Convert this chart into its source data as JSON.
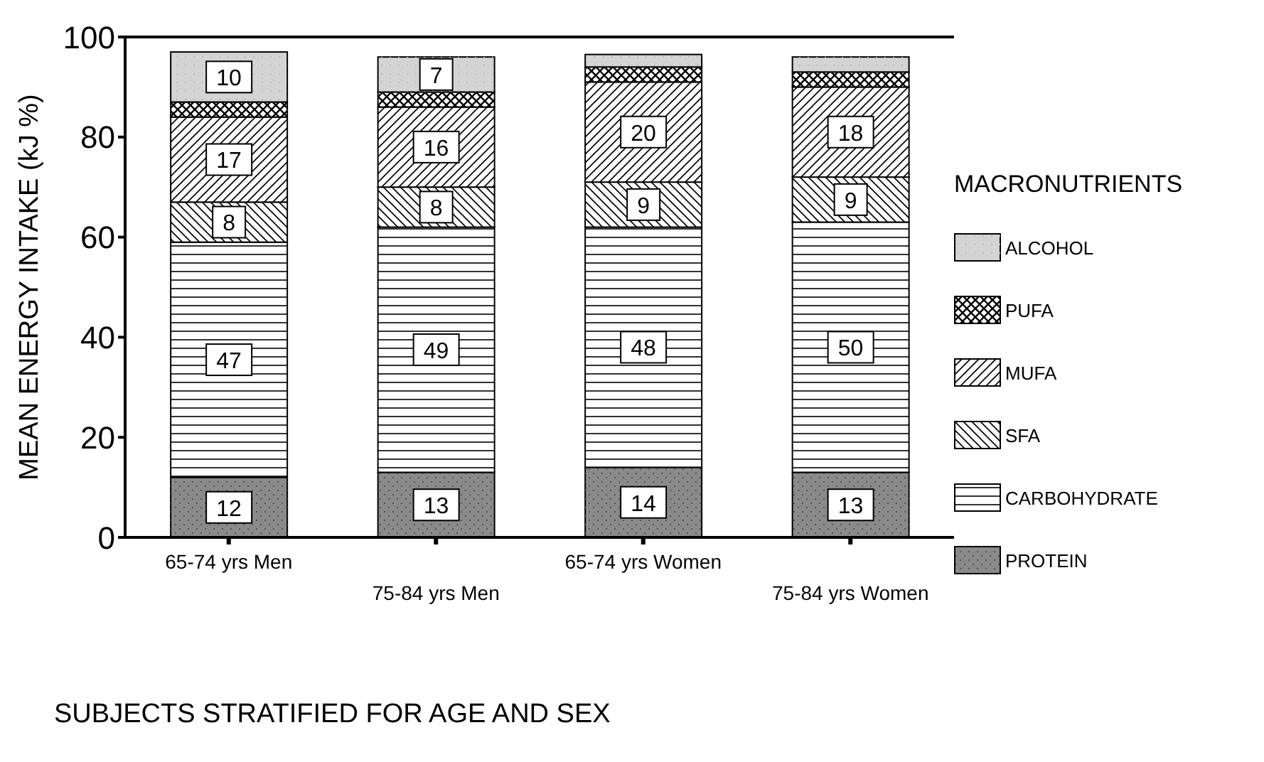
{
  "chart_data": {
    "type": "bar",
    "stacked": true,
    "xlabel": "SUBJECTS STRATIFIED FOR AGE AND SEX",
    "ylabel": "MEAN ENERGY INTAKE (kJ %)",
    "legend_title": "MACRONUTRIENTS",
    "legend": "right",
    "grid": false,
    "ylim": [
      0,
      100
    ],
    "yticks": [
      0,
      20,
      40,
      60,
      80,
      100
    ],
    "categories": [
      "65-74  yrs Men",
      "75-84 yrs Men",
      "65-74 yrs Women",
      "75-84 yrs Women"
    ],
    "series": [
      {
        "name": "PROTEIN",
        "color": "#8a8a8a",
        "values": [
          12,
          13,
          14,
          13
        ],
        "value_labels": [
          "12",
          "13",
          "14",
          "13"
        ]
      },
      {
        "name": "CARBOHYDRATE",
        "color": "#ffffff",
        "values": [
          47,
          49,
          48,
          50
        ],
        "value_labels": [
          "47",
          "49",
          "48",
          "50"
        ]
      },
      {
        "name": "SFA",
        "color": "#ffffff",
        "values": [
          8,
          8,
          9,
          9
        ],
        "value_labels": [
          "8",
          "8",
          "9",
          "9"
        ]
      },
      {
        "name": "MUFA",
        "color": "#ffffff",
        "values": [
          17,
          16,
          20,
          18
        ],
        "value_labels": [
          "17",
          "16",
          "20",
          "18"
        ]
      },
      {
        "name": "PUFA",
        "color": "#ffffff",
        "values": [
          3,
          3,
          3,
          3
        ],
        "value_labels": [
          null,
          null,
          null,
          null
        ]
      },
      {
        "name": "ALCOHOL",
        "color": "#d4d4d4",
        "values": [
          10,
          7,
          2.5,
          3
        ],
        "value_labels": [
          "10",
          "7",
          null,
          null
        ]
      }
    ]
  }
}
